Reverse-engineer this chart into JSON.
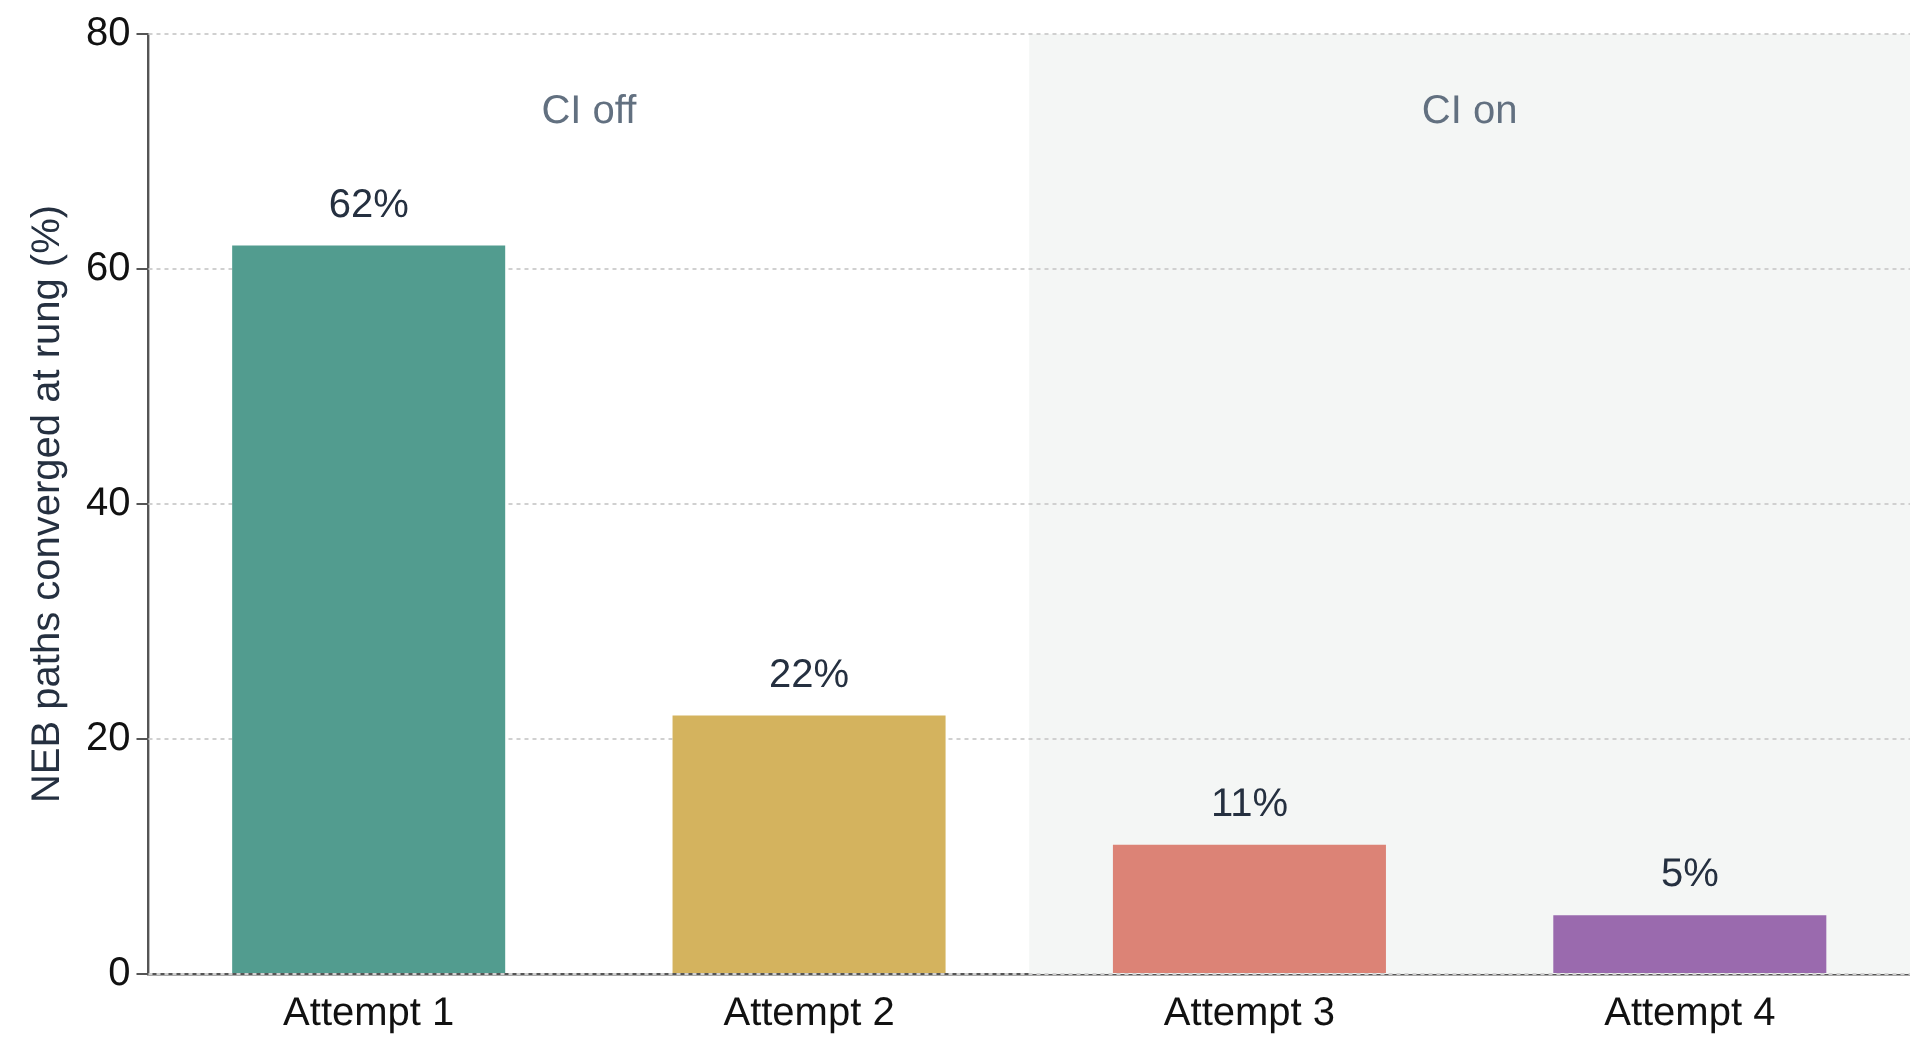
{
  "chart_data": {
    "type": "bar",
    "ylabel": "NEB paths converged at rung (%)",
    "categories": [
      "Attempt 1",
      "Attempt 2",
      "Attempt 3",
      "Attempt 4"
    ],
    "values": [
      62,
      22,
      11,
      5
    ],
    "colors": [
      "#529c8f",
      "#d4b35e",
      "#dc8376",
      "#9a6aae"
    ],
    "value_labels": [
      "62%",
      "22%",
      "11%",
      "5%"
    ],
    "ylim": [
      0,
      80
    ],
    "yticks": [
      0,
      20,
      40,
      60,
      80
    ],
    "grid": "y",
    "legend": false,
    "annotations": [
      "CI off"
    ],
    "bands": [
      {
        "axis": "x",
        "from": "Attempt 3",
        "to": "Attempt 4",
        "label": "CI on",
        "color": "#f4f6f5"
      }
    ]
  }
}
